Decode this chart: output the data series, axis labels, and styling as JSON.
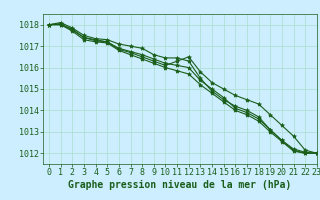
{
  "title": "Graphe pression niveau de la mer (hPa)",
  "xlim": [
    -0.5,
    23
  ],
  "ylim": [
    1011.5,
    1018.5
  ],
  "yticks": [
    1012,
    1013,
    1014,
    1015,
    1016,
    1017,
    1018
  ],
  "xticks": [
    0,
    1,
    2,
    3,
    4,
    5,
    6,
    7,
    8,
    9,
    10,
    11,
    12,
    13,
    14,
    15,
    16,
    17,
    18,
    19,
    20,
    21,
    22,
    23
  ],
  "bg_color": "#cceeff",
  "grid_color": "#aaddcc",
  "line_color": "#1a5e1a",
  "series": [
    [
      1018.0,
      1018.0,
      1017.8,
      1017.4,
      1017.3,
      1017.2,
      1016.85,
      1016.7,
      1016.5,
      1016.3,
      1016.1,
      1016.3,
      1016.5,
      1015.8,
      1015.3,
      1015.0,
      1014.7,
      1014.5,
      1014.3,
      1013.8,
      1013.3,
      1012.8,
      1012.15,
      1012.0
    ],
    [
      1018.0,
      1018.1,
      1017.85,
      1017.5,
      1017.35,
      1017.3,
      1017.1,
      1017.0,
      1016.9,
      1016.6,
      1016.45,
      1016.45,
      1016.3,
      1015.5,
      1014.9,
      1014.5,
      1014.2,
      1014.0,
      1013.7,
      1013.1,
      1012.6,
      1012.15,
      1012.0,
      1012.0
    ],
    [
      1018.0,
      1018.0,
      1017.7,
      1017.3,
      1017.2,
      1017.15,
      1016.8,
      1016.6,
      1016.4,
      1016.2,
      1016.0,
      1015.85,
      1015.7,
      1015.2,
      1014.8,
      1014.4,
      1014.0,
      1013.8,
      1013.5,
      1013.0,
      1012.55,
      1012.1,
      1012.0,
      1012.0
    ],
    [
      1018.0,
      1018.05,
      1017.75,
      1017.4,
      1017.25,
      1017.2,
      1016.9,
      1016.75,
      1016.6,
      1016.4,
      1016.2,
      1016.1,
      1016.0,
      1015.4,
      1015.0,
      1014.6,
      1014.1,
      1013.9,
      1013.6,
      1013.1,
      1012.6,
      1012.2,
      1012.05,
      1012.0
    ]
  ],
  "marker": "*",
  "markersize": 3,
  "linewidth": 0.8,
  "tick_fontsize": 6,
  "title_fontsize": 7,
  "ylabel_fontsize": 6
}
